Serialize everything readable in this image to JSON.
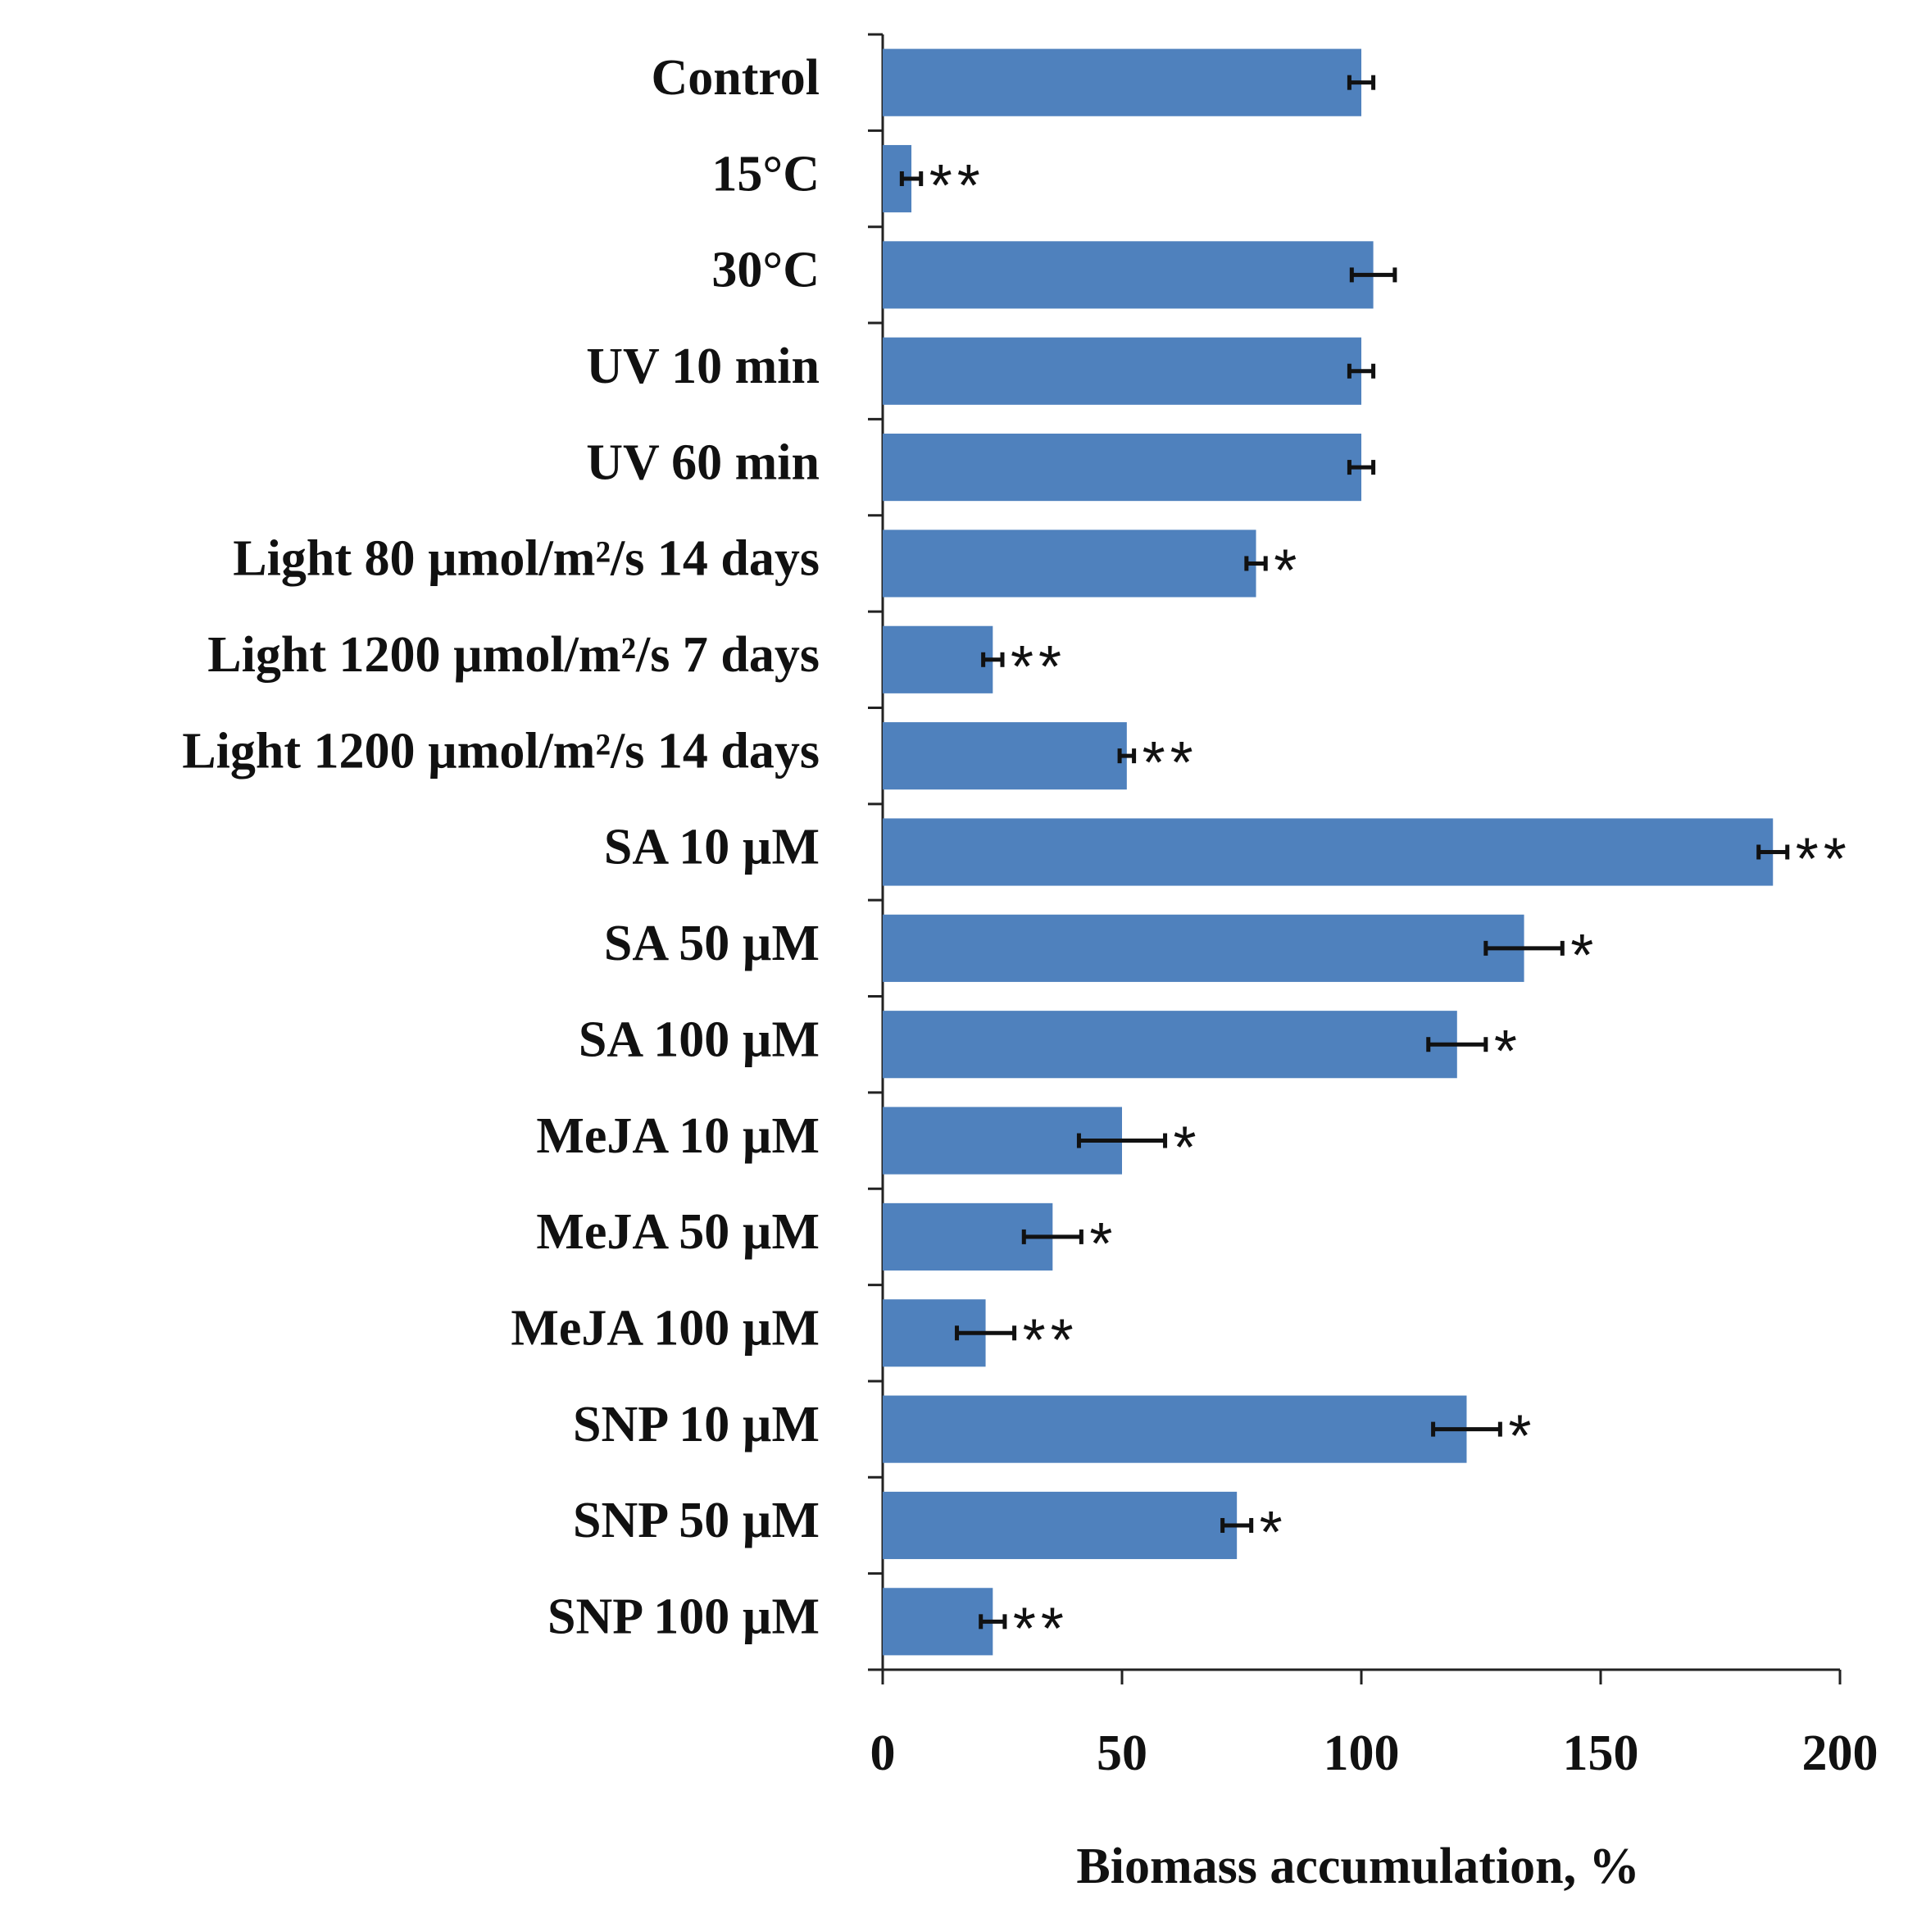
{
  "chart_data": {
    "type": "bar",
    "orientation": "horizontal",
    "x_label": "Biomass accumulation, %",
    "categories": [
      "Control",
      "15°C",
      "30°C",
      "UV 10 min",
      "UV 60 min",
      "Light 80 µmol/m²/s 14 days",
      "Light 1200 µmol/m²/s 7 days",
      "Light 1200 µmol/m²/s 14 days",
      "SA 10 µM",
      "SA 50  µM",
      "SA 100  µM",
      "MeJA 10  µM",
      "MeJA 50  µM",
      "MeJA 100  µM",
      "SNP 10  µM",
      "SNP 50  µM",
      "SNP 100  µM"
    ],
    "values": [
      100,
      6,
      102.5,
      100,
      100,
      78,
      23,
      51,
      186,
      134,
      120,
      50,
      35.5,
      21.5,
      122,
      74,
      23
    ],
    "errors": [
      2.5,
      2,
      4.5,
      2.5,
      2.5,
      2,
      2,
      1.5,
      3,
      8,
      6,
      9,
      6,
      6,
      7,
      3,
      2.5
    ],
    "significance": [
      null,
      "**",
      null,
      null,
      null,
      "*",
      "**",
      "**",
      "**",
      "*",
      "*",
      "*",
      "*",
      "**",
      "*",
      "*",
      "**"
    ],
    "color": "#4f81bd",
    "xlim": [
      0,
      200
    ],
    "xticks": [
      0,
      50,
      100,
      150,
      200
    ]
  }
}
